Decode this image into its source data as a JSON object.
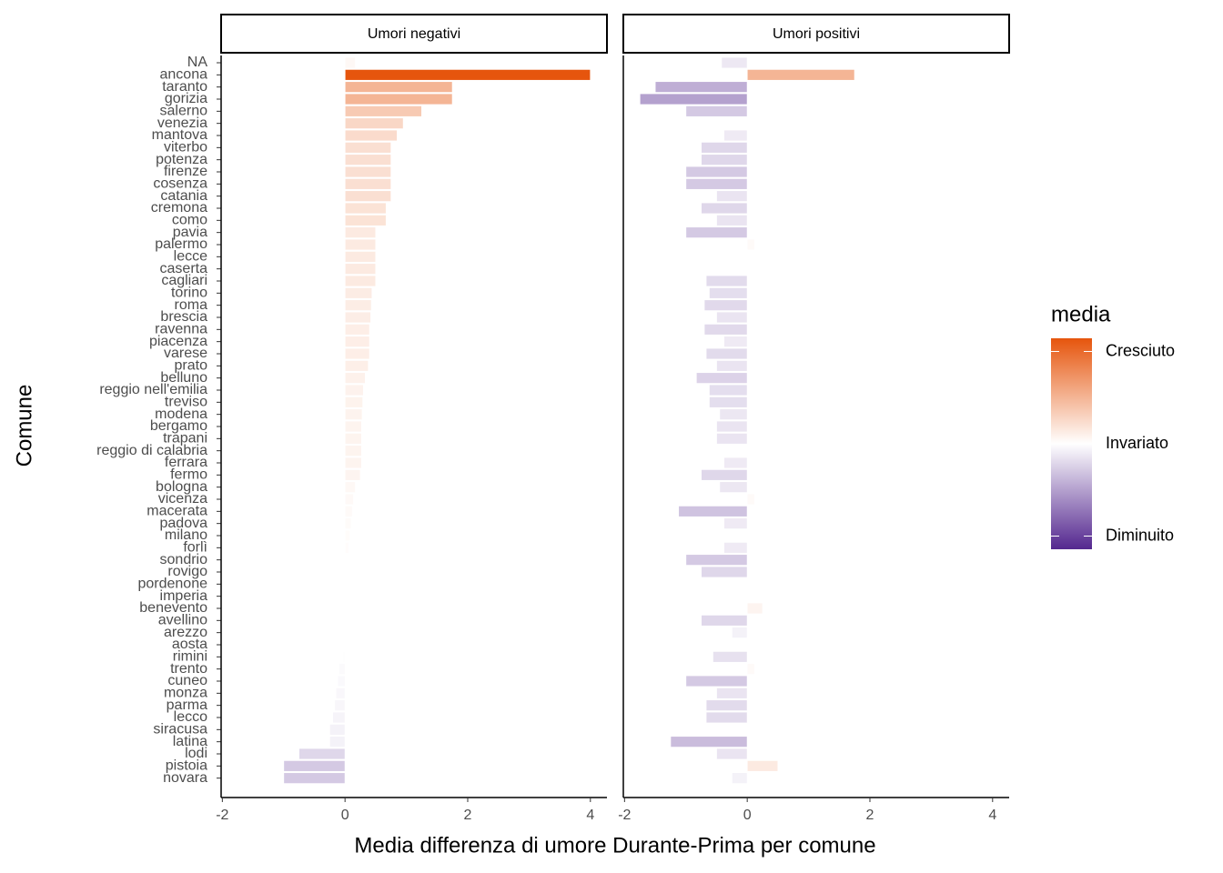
{
  "chart_data": {
    "type": "bar",
    "orientation": "horizontal",
    "x_label": "Media differenza di umore Durante-Prima per comune",
    "y_label": "Comune",
    "categories": [
      "NA",
      "ancona",
      "taranto",
      "gorizia",
      "salerno",
      "venezia",
      "mantova",
      "viterbo",
      "potenza",
      "firenze",
      "cosenza",
      "catania",
      "cremona",
      "como",
      "pavia",
      "palermo",
      "lecce",
      "caserta",
      "cagliari",
      "torino",
      "roma",
      "brescia",
      "ravenna",
      "piacenza",
      "varese",
      "prato",
      "belluno",
      "reggio nell'emilia",
      "treviso",
      "modena",
      "bergamo",
      "trapani",
      "reggio di calabria",
      "ferrara",
      "fermo",
      "bologna",
      "vicenza",
      "macerata",
      "padova",
      "milano",
      "forlì",
      "sondrio",
      "rovigo",
      "pordenone",
      "imperia",
      "benevento",
      "avellino",
      "arezzo",
      "aosta",
      "rimini",
      "trento",
      "cuneo",
      "monza",
      "parma",
      "lecco",
      "siracusa",
      "latina",
      "lodi",
      "pistoia",
      "novara"
    ],
    "panels": [
      {
        "title": "Umori negativi",
        "values": [
          0.17,
          4,
          1.75,
          1.75,
          1.25,
          0.95,
          0.85,
          0.75,
          0.75,
          0.75,
          0.75,
          0.75,
          0.67,
          0.67,
          0.5,
          0.5,
          0.5,
          0.5,
          0.5,
          0.44,
          0.43,
          0.42,
          0.4,
          0.4,
          0.4,
          0.38,
          0.33,
          0.3,
          0.29,
          0.28,
          0.27,
          0.27,
          0.27,
          0.27,
          0.25,
          0.17,
          0.14,
          0.12,
          0.1,
          0.08,
          0.06,
          0,
          0,
          0,
          0,
          0,
          0,
          0,
          0,
          -0.03,
          -0.1,
          -0.12,
          -0.15,
          -0.17,
          -0.2,
          -0.25,
          -0.25,
          -0.75,
          -1,
          -1
        ]
      },
      {
        "title": "Umori positivi",
        "values": [
          -0.42,
          1.75,
          -1.5,
          -1.75,
          -1,
          0,
          -0.38,
          -0.75,
          -0.75,
          -1,
          -1,
          -0.5,
          -0.75,
          -0.5,
          -1,
          0.12,
          0,
          0,
          -0.67,
          -0.62,
          -0.7,
          -0.5,
          -0.7,
          -0.38,
          -0.67,
          -0.5,
          -0.83,
          -0.62,
          -0.62,
          -0.45,
          -0.5,
          -0.5,
          0,
          -0.38,
          -0.75,
          -0.45,
          0.12,
          -1.12,
          -0.38,
          0,
          -0.38,
          -1,
          -0.75,
          0,
          0,
          0.25,
          -0.75,
          -0.25,
          0,
          -0.56,
          0.12,
          -1,
          -0.5,
          -0.67,
          -0.67,
          0,
          -1.25,
          -0.5,
          0.5,
          -0.25
        ]
      }
    ],
    "xlim": [
      -2.02,
      4.27
    ],
    "xticks": [
      -2,
      0,
      2,
      4
    ],
    "fill_scale": {
      "title": "media",
      "low": "#54278f",
      "mid": "#ffffff",
      "high": "#e6550d",
      "limits": [
        -4,
        4
      ],
      "ticks": [
        {
          "value": 3.5,
          "label": "Cresciuto"
        },
        {
          "value": 0,
          "label": "Invariato"
        },
        {
          "value": -3.5,
          "label": "Diminuito"
        }
      ]
    }
  }
}
